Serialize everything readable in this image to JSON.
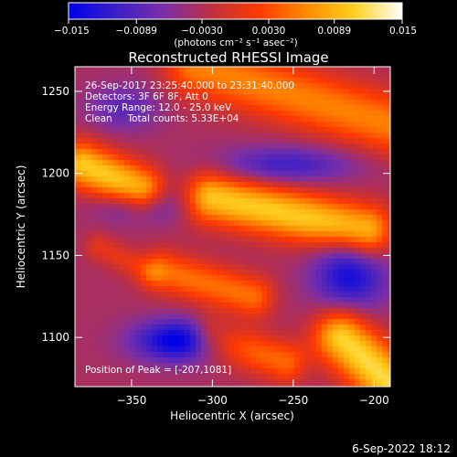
{
  "chart_data": {
    "type": "heatmap",
    "title": "Reconstructed RHESSI Image",
    "xlabel": "Heliocentric X (arcsec)",
    "ylabel": "Heliocentric Y (arcsec)",
    "xlim": [
      -385,
      -190
    ],
    "ylim": [
      1070,
      1265
    ],
    "x_ticks": [
      -350,
      -300,
      -250,
      -200
    ],
    "y_ticks": [
      1100,
      1150,
      1200,
      1250
    ],
    "x_tick_labels": [
      "−350",
      "−300",
      "−250",
      "−200"
    ],
    "y_tick_labels": [
      "1100",
      "1150",
      "1200",
      "1250"
    ],
    "info_lines": [
      "26-Sep-2017 23:25:40.000 to 23:31:40.000",
      "Detectors: 3F 6F 8F, Att 0",
      "Energy Range: 12.0 - 25.0 keV",
      "Clean     Total counts: 5.33E+04"
    ],
    "peak_label": "Position of Peak = [-207,1081]",
    "peak_position": [
      -207,
      1081
    ],
    "colorbar": {
      "range": [
        -0.015,
        0.015
      ],
      "ticks": [
        -0.015,
        -0.0089,
        -0.003,
        0.003,
        0.0089,
        0.015
      ],
      "tick_labels": [
        "−0.015",
        "−0.0089",
        "−0.0030",
        "0.0030",
        "0.0089",
        "0.015"
      ],
      "unit_label": "(photons cm⁻² s⁻¹ asec⁻²)",
      "colors": [
        "#0000e6",
        "#3a1fc8",
        "#7a2fa8",
        "#c03040",
        "#ff3a00",
        "#ff8a00",
        "#ffd020",
        "#ffffff"
      ]
    },
    "grid": false,
    "emission_bands": [
      {
        "x0": -310,
        "y0": 1265,
        "x1": -190,
        "y1": 1230,
        "width": 26,
        "amplitude": 0.0095
      },
      {
        "x0": -300,
        "y0": 1185,
        "x1": -205,
        "y1": 1165,
        "width": 22,
        "amplitude": 0.014
      },
      {
        "x0": -380,
        "y0": 1205,
        "x1": -345,
        "y1": 1190,
        "width": 20,
        "amplitude": 0.014
      },
      {
        "x0": -330,
        "y0": 1140,
        "x1": -275,
        "y1": 1125,
        "width": 18,
        "amplitude": 0.0085
      },
      {
        "x0": -370,
        "y0": 1155,
        "x1": -340,
        "y1": 1140,
        "width": 12,
        "amplitude": 0.004
      },
      {
        "x0": -300,
        "y0": 1100,
        "x1": -255,
        "y1": 1085,
        "width": 18,
        "amplitude": 0.008
      },
      {
        "x0": -220,
        "y0": 1100,
        "x1": -190,
        "y1": 1072,
        "width": 24,
        "amplitude": 0.015
      }
    ],
    "minima": [
      {
        "x": -320,
        "y": 1098,
        "sx": 20,
        "sy": 9,
        "amplitude": -0.012
      },
      {
        "x": -215,
        "y": 1138,
        "sx": 16,
        "sy": 16,
        "amplitude": -0.01
      },
      {
        "x": -255,
        "y": 1205,
        "sx": 30,
        "sy": 8,
        "amplitude": -0.007
      },
      {
        "x": -345,
        "y": 1180,
        "sx": 18,
        "sy": 8,
        "amplitude": -0.006
      },
      {
        "x": -355,
        "y": 1240,
        "sx": 16,
        "sy": 10,
        "amplitude": -0.005
      }
    ],
    "background_level": -0.0035
  },
  "footer": {
    "date": "6-Sep-2022 18:12"
  }
}
